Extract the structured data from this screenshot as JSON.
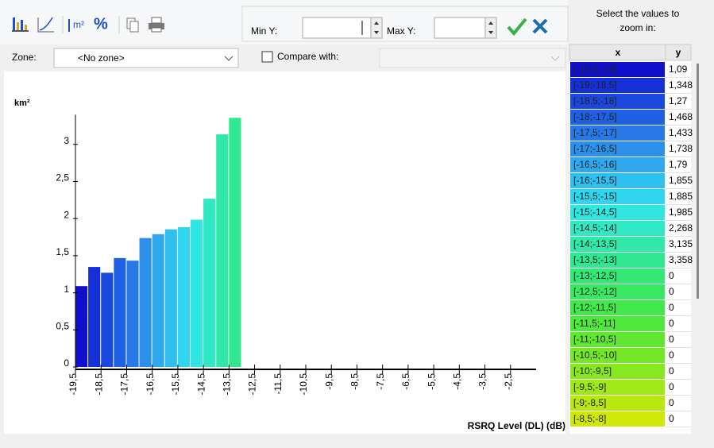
{
  "toolbar": {
    "min_label": "Min Y:",
    "max_label": "Max Y:"
  },
  "zone": {
    "label": "Zone:",
    "value": "<No zone>",
    "compare_label": "Compare with:"
  },
  "panel": {
    "title_line1": "Select the values to",
    "title_line2": "zoom in:"
  },
  "chart_data": {
    "type": "histogram",
    "y_label": "km²",
    "x_label": "RSRQ Level (DL) (dB)",
    "bins": [
      -19.5,
      -19,
      -18.5,
      -18,
      -17.5,
      -17,
      -16.5,
      -16,
      -15.5,
      -15,
      -14.5,
      -14,
      -13.5,
      -13,
      -12.5,
      -12,
      -11.5,
      -11,
      -10.5,
      -10,
      -9.5,
      -9,
      -8.5,
      -8
    ],
    "values": [
      1.09,
      1.348,
      1.27,
      1.468,
      1.433,
      1.738,
      1.79,
      1.855,
      1.885,
      1.985,
      2.268,
      3.135,
      3.358,
      0,
      0,
      0,
      0,
      0,
      0,
      0,
      0,
      0,
      0
    ],
    "colors": [
      "#1010cc",
      "#1530d6",
      "#1a48de",
      "#2060e4",
      "#2878e8",
      "#2c90ea",
      "#30a8ee",
      "#30c0f0",
      "#30d6f0",
      "#30e6e0",
      "#30e8c4",
      "#30e8a8",
      "#30e890",
      "#34e878",
      "#38e860",
      "#40e84c",
      "#50e83c",
      "#60e830",
      "#74e828",
      "#88e820",
      "#a0e818",
      "#b8e810",
      "#d0e808"
    ],
    "xlim": [
      -19.5,
      -1.5
    ],
    "ylim": [
      0,
      3.4
    ],
    "xticks": [
      {
        "value": -19.5,
        "label": "-19,5"
      },
      {
        "value": -18.5,
        "label": "-18,5"
      },
      {
        "value": -17.5,
        "label": "-17,5"
      },
      {
        "value": -16.5,
        "label": "-16,5"
      },
      {
        "value": -15.5,
        "label": "-15,5"
      },
      {
        "value": -14.5,
        "label": "-14,5"
      },
      {
        "value": -13.5,
        "label": "-13,5"
      },
      {
        "value": -12.5,
        "label": "-12,5"
      },
      {
        "value": -11.5,
        "label": "-11,5"
      },
      {
        "value": -10.5,
        "label": "-10,5"
      },
      {
        "value": -9.5,
        "label": "-9,5"
      },
      {
        "value": -8.5,
        "label": "-8,5"
      },
      {
        "value": -7.5,
        "label": "-7,5"
      },
      {
        "value": -6.5,
        "label": "-6,5"
      },
      {
        "value": -5.5,
        "label": "-5,5"
      },
      {
        "value": -4.5,
        "label": "-4,5"
      },
      {
        "value": -3.5,
        "label": "-3,5"
      },
      {
        "value": -2.5,
        "label": "-2,5"
      }
    ],
    "yticks": [
      0,
      {
        "value": 0.5,
        "label": "0,5"
      },
      1,
      {
        "value": 1.5,
        "label": "1,5"
      },
      2,
      {
        "value": 2.5,
        "label": "2,5"
      },
      3
    ]
  },
  "table": {
    "headers": [
      "x",
      "y"
    ],
    "rows": [
      [
        "[-19,5;-19]",
        "1,09"
      ],
      [
        "[-19;-18,5]",
        "1,348"
      ],
      [
        "[-18,5;-18]",
        "1,27"
      ],
      [
        "[-18;-17,5]",
        "1,468"
      ],
      [
        "[-17,5;-17]",
        "1,433"
      ],
      [
        "[-17;-16,5]",
        "1,738"
      ],
      [
        "[-16,5;-16]",
        "1,79"
      ],
      [
        "[-16;-15,5]",
        "1,855"
      ],
      [
        "[-15,5;-15]",
        "1,885"
      ],
      [
        "[-15;-14,5]",
        "1,985"
      ],
      [
        "[-14,5;-14]",
        "2,268"
      ],
      [
        "[-14;-13,5]",
        "3,135"
      ],
      [
        "[-13,5;-13]",
        "3,358"
      ],
      [
        "[-13;-12,5]",
        "0"
      ],
      [
        "[-12,5;-12]",
        "0"
      ],
      [
        "[-12;-11,5]",
        "0"
      ],
      [
        "[-11,5;-11]",
        "0"
      ],
      [
        "[-11;-10,5]",
        "0"
      ],
      [
        "[-10,5;-10]",
        "0"
      ],
      [
        "[-10;-9,5]",
        "0"
      ],
      [
        "[-9,5;-9]",
        "0"
      ],
      [
        "[-9;-8,5]",
        "0"
      ],
      [
        "[-8,5;-8]",
        "0"
      ]
    ]
  }
}
